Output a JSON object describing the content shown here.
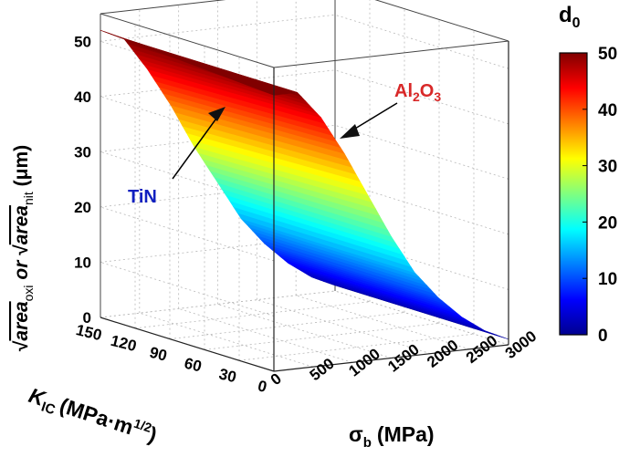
{
  "chart_data": {
    "type": "surface3d",
    "xaxis": {
      "label_main": "σ",
      "label_sub": "b",
      "label_unit": "(MPa)",
      "ticks": [
        "0",
        "500",
        "1000",
        "1500",
        "2000",
        "2500",
        "3000"
      ],
      "range": [
        0,
        3000
      ]
    },
    "yaxis": {
      "label_main": "K",
      "label_sub": "IC",
      "label_unit_pre": "(MPa·m",
      "label_sup": "1/2",
      "label_unit_post": ")",
      "ticks": [
        "0",
        "30",
        "60",
        "90",
        "120",
        "150"
      ],
      "range": [
        0,
        150
      ]
    },
    "zaxis": {
      "label_parts": [
        "√",
        "area",
        "oxi",
        " or ",
        "√",
        "area",
        "nit",
        " (μm)"
      ],
      "ticks": [
        "0",
        "10",
        "20",
        "30",
        "40",
        "50"
      ],
      "range": [
        0,
        55
      ]
    },
    "colorbar": {
      "title_main": "d",
      "title_sub": "0",
      "ticks": [
        "0",
        "10",
        "20",
        "30",
        "40",
        "50"
      ],
      "range": [
        0,
        50
      ]
    },
    "annotations": {
      "tin": "TiN",
      "al2o3_main": "Al",
      "al2o3_sub1": "2",
      "al2o3_o": "O",
      "al2o3_sub2": "3"
    },
    "series": [
      {
        "name": "TiN",
        "points": [
          [
            0,
            0,
            50
          ],
          [
            300,
            0,
            50
          ],
          [
            600,
            0,
            45
          ],
          [
            900,
            0,
            38
          ],
          [
            1200,
            0,
            30
          ],
          [
            1500,
            0,
            22
          ],
          [
            1800,
            0,
            15
          ],
          [
            2100,
            0,
            10
          ],
          [
            2400,
            0,
            6
          ],
          [
            2700,
            0,
            3
          ],
          [
            3000,
            0,
            1
          ]
        ]
      },
      {
        "name": "Al2O3",
        "points": [
          [
            0,
            150,
            52
          ],
          [
            300,
            150,
            50
          ],
          [
            600,
            150,
            44
          ],
          [
            900,
            150,
            37
          ],
          [
            1200,
            150,
            29
          ],
          [
            1500,
            150,
            22
          ],
          [
            1800,
            150,
            15
          ],
          [
            2100,
            150,
            10
          ],
          [
            2400,
            150,
            6
          ],
          [
            2700,
            150,
            3
          ],
          [
            3000,
            150,
            1
          ]
        ]
      }
    ],
    "grid": true
  }
}
